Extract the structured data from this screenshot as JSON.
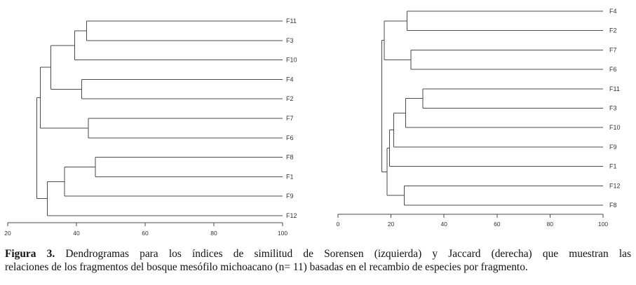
{
  "caption": {
    "label": "Figura 3.",
    "line1_text": " Dendrogramas para los índices de similitud de Sorensen (izquierda) y Jaccard (derecha) que muestran las",
    "line2_text": "relaciones de los fragmentos del bosque mesófilo michoacano (n= 11) basadas en el recambio de especies por fragmento."
  },
  "dendrograms": [
    {
      "name": "Sorensen",
      "leaves": [
        "F11",
        "F3",
        "F10",
        "F4",
        "F2",
        "F7",
        "F6",
        "F8",
        "F1",
        "F9",
        "F12"
      ],
      "axis": {
        "ticks": [
          "20",
          "40",
          "60",
          "80",
          "100"
        ],
        "min": 20,
        "max": 100
      },
      "merges": [
        {
          "a": "F11",
          "b": "F3",
          "height": 43
        },
        {
          "a": "F11+F3",
          "b": "F10",
          "height": 39.5
        },
        {
          "a": "F4",
          "b": "F2",
          "height": 41.5
        },
        {
          "a": "F11+F3+F10",
          "b": "F4+F2",
          "height": 32.5
        },
        {
          "a": "F7",
          "b": "F6",
          "height": 43.5
        },
        {
          "a": "(F11,F3,F10,F4,F2)",
          "b": "F7+F6",
          "height": 29.5
        },
        {
          "a": "F8",
          "b": "F1",
          "height": 45.5
        },
        {
          "a": "F8+F1",
          "b": "F9",
          "height": 36.5
        },
        {
          "a": "F8+F1+F9",
          "b": "F12",
          "height": 31.5
        },
        {
          "a": "all upper",
          "b": "all lower",
          "height": 28.5
        }
      ]
    },
    {
      "name": "Jaccard",
      "leaves": [
        "F4",
        "F2",
        "F7",
        "F6",
        "F11",
        "F3",
        "F10",
        "F9",
        "F1",
        "F12",
        "F8"
      ],
      "axis": {
        "ticks": [
          "0",
          "20",
          "40",
          "60",
          "80",
          "100"
        ],
        "min": 0,
        "max": 100
      },
      "merges": [
        {
          "a": "F4",
          "b": "F2",
          "height": 26
        },
        {
          "a": "F7",
          "b": "F6",
          "height": 27.5
        },
        {
          "a": "F4+F2",
          "b": "F7+F6",
          "height": 17.5
        },
        {
          "a": "F11",
          "b": "F3",
          "height": 32
        },
        {
          "a": "F11+F3",
          "b": "F10",
          "height": 25.5
        },
        {
          "a": "F11+F3+F10",
          "b": "F9",
          "height": 21
        },
        {
          "a": "F11+F3+F10+F9",
          "b": "F1",
          "height": 19.5
        },
        {
          "a": "F12",
          "b": "F8",
          "height": 25
        },
        {
          "a": "(F11,F3,F10,F9,F1)",
          "b": "F12+F8",
          "height": 18.5
        },
        {
          "a": "all upper",
          "b": "all lower",
          "height": 16.5
        }
      ]
    }
  ]
}
